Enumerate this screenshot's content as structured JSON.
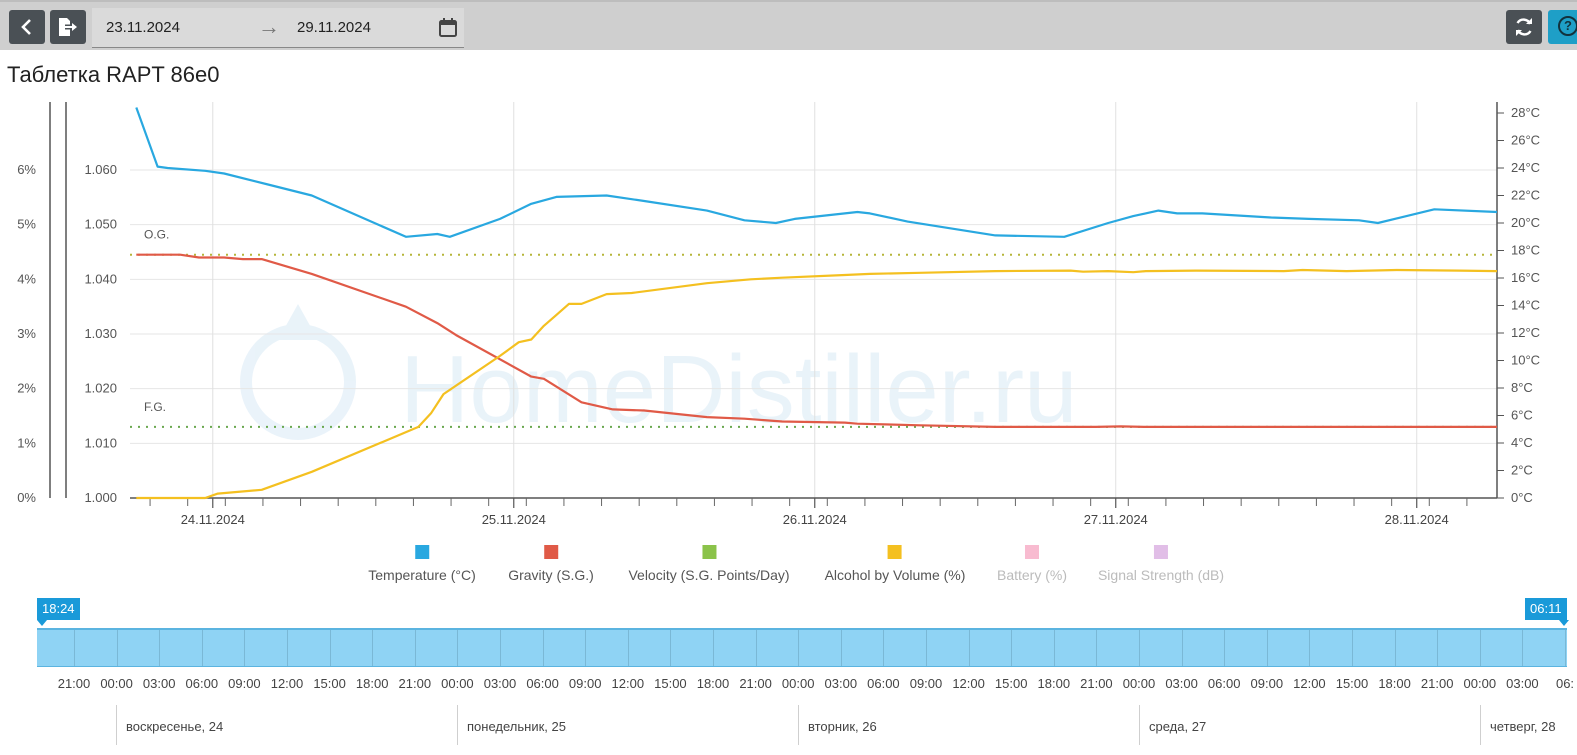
{
  "toolbar": {
    "date_from": "23.11.2024",
    "date_to": "29.11.2024",
    "arrow": "→"
  },
  "title": "Таблетка RAPT 86e0",
  "watermark": "HomeDistiller.ru",
  "chart_data": {
    "type": "line",
    "x_ticks": [
      "24.11.2024",
      "25.11.2024",
      "26.11.2024",
      "27.11.2024",
      "28.11.2024"
    ],
    "x_tick_hours": [
      29.6,
      53.6,
      77.6,
      101.6,
      125.6
    ],
    "x_range_hours": [
      23.0,
      132.0
    ],
    "y_axes": {
      "abv": {
        "ticks": [
          "0%",
          "1%",
          "2%",
          "3%",
          "4%",
          "5%",
          "6%"
        ],
        "range": [
          0,
          6
        ]
      },
      "gravity": {
        "ticks": [
          "1.000",
          "1.010",
          "1.020",
          "1.030",
          "1.040",
          "1.050",
          "1.060"
        ],
        "range": [
          1.0,
          1.06
        ]
      },
      "temperature": {
        "ticks": [
          "0°C",
          "2°C",
          "4°C",
          "6°C",
          "8°C",
          "10°C",
          "12°C",
          "14°C",
          "16°C",
          "18°C",
          "20°C",
          "22°C",
          "24°C",
          "26°C",
          "28°C"
        ],
        "range": [
          0,
          28
        ]
      }
    },
    "reference_lines": [
      {
        "label": "O.G.",
        "gravity": 1.0445
      },
      {
        "label": "F.G.",
        "gravity": 1.013
      }
    ],
    "series": [
      {
        "name": "Temperature (°C)",
        "axis": "temperature",
        "color": "#29a8e0",
        "points": [
          [
            23.5,
            28.4
          ],
          [
            25.2,
            24.1
          ],
          [
            26.0,
            24.0
          ],
          [
            29.0,
            23.8
          ],
          [
            30.5,
            23.6
          ],
          [
            34.0,
            22.8
          ],
          [
            37.5,
            22.0
          ],
          [
            45.0,
            19.0
          ],
          [
            47.5,
            19.2
          ],
          [
            48.5,
            19.0
          ],
          [
            52.5,
            20.3
          ],
          [
            55.0,
            21.4
          ],
          [
            57.0,
            21.9
          ],
          [
            61.0,
            22.0
          ],
          [
            64.0,
            21.6
          ],
          [
            69.0,
            20.9
          ],
          [
            72.0,
            20.2
          ],
          [
            74.5,
            20.0
          ],
          [
            76.0,
            20.3
          ],
          [
            81.0,
            20.8
          ],
          [
            82.0,
            20.7
          ],
          [
            85.0,
            20.1
          ],
          [
            92.0,
            19.1
          ],
          [
            97.5,
            19.0
          ],
          [
            101.0,
            20.0
          ],
          [
            103.0,
            20.5
          ],
          [
            105.0,
            20.9
          ],
          [
            106.5,
            20.7
          ],
          [
            108.5,
            20.7
          ],
          [
            114.0,
            20.4
          ],
          [
            117.0,
            20.3
          ],
          [
            121.0,
            20.2
          ],
          [
            122.5,
            20.0
          ],
          [
            127.0,
            21.0
          ],
          [
            132.0,
            20.8
          ]
        ]
      },
      {
        "name": "Gravity (S.G.)",
        "axis": "gravity",
        "color": "#e05a47",
        "points": [
          [
            23.5,
            1.0445
          ],
          [
            27.0,
            1.0445
          ],
          [
            28.5,
            1.044
          ],
          [
            30.5,
            1.044
          ],
          [
            32.0,
            1.0437
          ],
          [
            33.5,
            1.0437
          ],
          [
            37.5,
            1.041
          ],
          [
            45.0,
            1.035
          ],
          [
            47.5,
            1.032
          ],
          [
            49.0,
            1.0298
          ],
          [
            55.0,
            1.0222
          ],
          [
            56.0,
            1.0218
          ],
          [
            59.0,
            1.0175
          ],
          [
            61.5,
            1.0162
          ],
          [
            64.0,
            1.016
          ],
          [
            69.0,
            1.0148
          ],
          [
            72.0,
            1.0145
          ],
          [
            75.0,
            1.014
          ],
          [
            80.0,
            1.0138
          ],
          [
            81.0,
            1.0136
          ],
          [
            86.0,
            1.0133
          ],
          [
            92.0,
            1.013
          ],
          [
            100.0,
            1.013
          ],
          [
            102.0,
            1.0131
          ],
          [
            104.0,
            1.013
          ],
          [
            110.0,
            1.013
          ],
          [
            115.0,
            1.013
          ],
          [
            117.0,
            1.013
          ],
          [
            125.0,
            1.013
          ],
          [
            132.0,
            1.013
          ]
        ]
      },
      {
        "name": "Velocity (S.G. Points/Day)",
        "axis": "gravity",
        "color": "#8bc34a",
        "hidden": true,
        "points": []
      },
      {
        "name": "Alcohol by Volume (%)",
        "axis": "abv",
        "color": "#f4c020",
        "points": [
          [
            23.5,
            0.0
          ],
          [
            27.0,
            0.0
          ],
          [
            29.0,
            0.0
          ],
          [
            30.0,
            0.08
          ],
          [
            33.5,
            0.15
          ],
          [
            37.5,
            0.48
          ],
          [
            46.0,
            1.3
          ],
          [
            47.0,
            1.55
          ],
          [
            48.0,
            1.9
          ],
          [
            52.5,
            2.6
          ],
          [
            54.0,
            2.85
          ],
          [
            55.0,
            2.9
          ],
          [
            56.0,
            3.15
          ],
          [
            57.0,
            3.35
          ],
          [
            58.0,
            3.55
          ],
          [
            59.0,
            3.55
          ],
          [
            61.0,
            3.73
          ],
          [
            63.0,
            3.75
          ],
          [
            69.0,
            3.93
          ],
          [
            72.5,
            4.0
          ],
          [
            75.0,
            4.03
          ],
          [
            80.0,
            4.08
          ],
          [
            82.0,
            4.1
          ],
          [
            86.0,
            4.12
          ],
          [
            92.0,
            4.15
          ],
          [
            98.0,
            4.16
          ],
          [
            99.0,
            4.14
          ],
          [
            101.0,
            4.15
          ],
          [
            103.0,
            4.13
          ],
          [
            104.0,
            4.15
          ],
          [
            108.0,
            4.16
          ],
          [
            115.0,
            4.15
          ],
          [
            116.5,
            4.17
          ],
          [
            120.0,
            4.15
          ],
          [
            124.0,
            4.17
          ],
          [
            129.0,
            4.16
          ],
          [
            132.0,
            4.15
          ]
        ]
      },
      {
        "name": "Battery (%)",
        "axis": "abv",
        "color": "#f8bbd0",
        "hidden": true,
        "points": []
      },
      {
        "name": "Signal Strength (dB)",
        "axis": "abv",
        "color": "#e1bee7",
        "hidden": true,
        "points": []
      }
    ],
    "legend": [
      {
        "label": "Temperature (°C)",
        "color": "#29a8e0",
        "enabled": true
      },
      {
        "label": "Gravity (S.G.)",
        "color": "#e05a47",
        "enabled": true
      },
      {
        "label": "Velocity (S.G. Points/Day)",
        "color": "#8bc34a",
        "enabled": true
      },
      {
        "label": "Alcohol by Volume (%)",
        "color": "#f4c020",
        "enabled": true
      },
      {
        "label": "Battery (%)",
        "color": "#f8bbd0",
        "enabled": false
      },
      {
        "label": "Signal Strength (dB)",
        "color": "#e1bee7",
        "enabled": false
      }
    ],
    "legend_position": "bottom",
    "grid": true
  },
  "navigator": {
    "start_handle": "18:24",
    "end_handle": "06:11",
    "time_labels": [
      "21:00",
      "00:00",
      "03:00",
      "06:00",
      "09:00",
      "12:00",
      "15:00",
      "18:00",
      "21:00",
      "00:00",
      "03:00",
      "06:00",
      "09:00",
      "12:00",
      "15:00",
      "18:00",
      "21:00",
      "00:00",
      "03:00",
      "06:00",
      "09:00",
      "12:00",
      "15:00",
      "18:00",
      "21:00",
      "00:00",
      "03:00",
      "06:00",
      "09:00",
      "12:00",
      "15:00",
      "18:00",
      "21:00",
      "00:00",
      "03:00",
      "06:"
    ],
    "day_labels": [
      "воскресенье, 24",
      "понедельник, 25",
      "вторник, 26",
      "среда, 27",
      "четверг, 28"
    ]
  }
}
